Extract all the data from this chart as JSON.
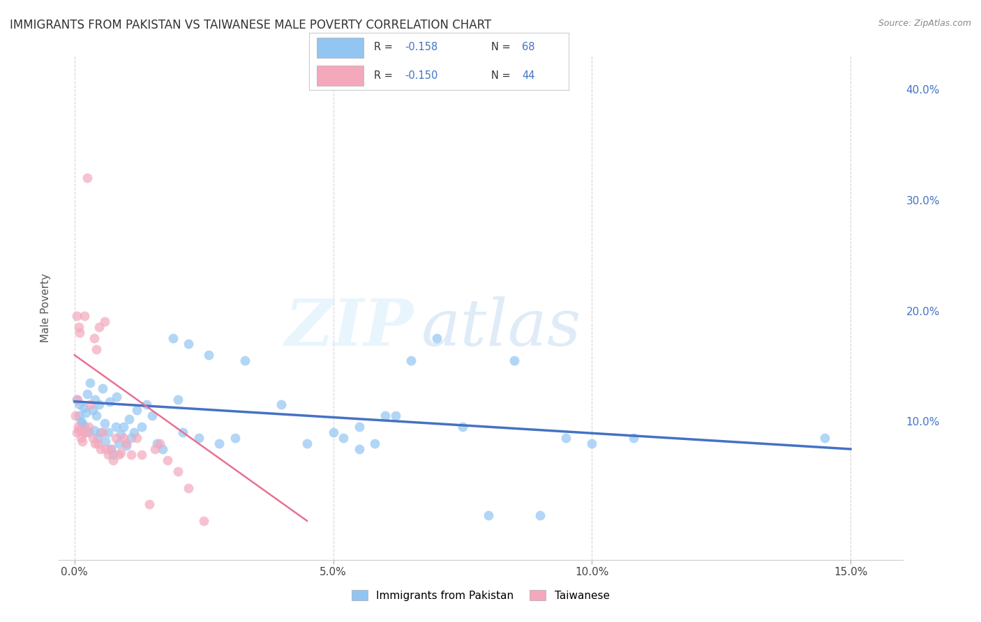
{
  "title": "IMMIGRANTS FROM PAKISTAN VS TAIWANESE MALE POVERTY CORRELATION CHART",
  "source": "Source: ZipAtlas.com",
  "ylabel": "Male Poverty",
  "xlim": [
    -0.3,
    16.0
  ],
  "ylim": [
    -2.5,
    43.0
  ],
  "color_blue": "#92C5F2",
  "color_pink": "#F4A8BC",
  "line_blue": "#4472C4",
  "line_pink": "#E87090",
  "watermark_zip": "ZIP",
  "watermark_atlas": "atlas",
  "legend_r1": "-0.158",
  "legend_n1": "68",
  "legend_r2": "-0.150",
  "legend_n2": "44",
  "legend_label1": "Immigrants from Pakistan",
  "legend_label2": "Taiwanese",
  "pakistan_x": [
    0.05,
    0.08,
    0.1,
    0.12,
    0.15,
    0.18,
    0.2,
    0.22,
    0.25,
    0.28,
    0.3,
    0.35,
    0.38,
    0.4,
    0.42,
    0.45,
    0.48,
    0.5,
    0.55,
    0.58,
    0.6,
    0.65,
    0.68,
    0.7,
    0.75,
    0.8,
    0.82,
    0.85,
    0.9,
    0.95,
    1.0,
    1.05,
    1.1,
    1.15,
    1.2,
    1.3,
    1.4,
    1.5,
    1.6,
    1.7,
    1.9,
    2.0,
    2.1,
    2.2,
    2.4,
    2.6,
    2.8,
    3.1,
    3.3,
    4.0,
    4.5,
    5.0,
    5.2,
    5.5,
    5.8,
    6.0,
    6.5,
    7.0,
    7.5,
    8.5,
    9.5,
    10.0,
    10.8,
    14.5,
    5.5,
    6.2,
    8.0,
    9.0
  ],
  "pakistan_y": [
    12.0,
    10.5,
    11.5,
    10.0,
    9.8,
    11.2,
    9.5,
    10.8,
    12.5,
    9.0,
    13.5,
    11.0,
    9.2,
    12.0,
    10.5,
    8.5,
    11.5,
    9.0,
    13.0,
    9.8,
    8.2,
    9.0,
    11.8,
    7.5,
    7.0,
    9.5,
    12.2,
    8.0,
    8.8,
    9.5,
    7.8,
    10.2,
    8.5,
    9.0,
    11.0,
    9.5,
    11.5,
    10.5,
    8.0,
    7.5,
    17.5,
    12.0,
    9.0,
    17.0,
    8.5,
    16.0,
    8.0,
    8.5,
    15.5,
    11.5,
    8.0,
    9.0,
    8.5,
    7.5,
    8.0,
    10.5,
    15.5,
    17.5,
    9.5,
    15.5,
    8.5,
    8.0,
    8.5,
    8.5,
    9.5,
    10.5,
    1.5,
    1.5
  ],
  "taiwanese_x": [
    0.02,
    0.04,
    0.05,
    0.06,
    0.07,
    0.08,
    0.09,
    0.1,
    0.12,
    0.15,
    0.18,
    0.2,
    0.22,
    0.25,
    0.28,
    0.3,
    0.35,
    0.38,
    0.4,
    0.42,
    0.45,
    0.48,
    0.5,
    0.55,
    0.58,
    0.6,
    0.65,
    0.7,
    0.75,
    0.8,
    0.85,
    0.9,
    0.95,
    1.0,
    1.1,
    1.2,
    1.3,
    1.45,
    1.55,
    1.65,
    1.8,
    2.0,
    2.2,
    2.5
  ],
  "taiwanese_y": [
    10.5,
    9.0,
    19.5,
    12.0,
    9.5,
    18.5,
    9.2,
    18.0,
    8.5,
    8.2,
    9.0,
    19.5,
    9.0,
    32.0,
    9.5,
    11.5,
    8.5,
    17.5,
    8.0,
    16.5,
    8.0,
    18.5,
    7.5,
    9.0,
    19.0,
    7.5,
    7.0,
    7.5,
    6.5,
    8.5,
    7.0,
    7.2,
    8.5,
    8.0,
    7.0,
    8.5,
    7.0,
    2.5,
    7.5,
    8.0,
    6.5,
    5.5,
    4.0,
    1.0
  ],
  "pak_line_x": [
    0.0,
    15.0
  ],
  "pak_line_y_start": 11.8,
  "pak_line_y_end": 7.5,
  "tai_line_x": [
    0.0,
    4.5
  ],
  "tai_line_y_start": 16.0,
  "tai_line_y_end": 1.0
}
